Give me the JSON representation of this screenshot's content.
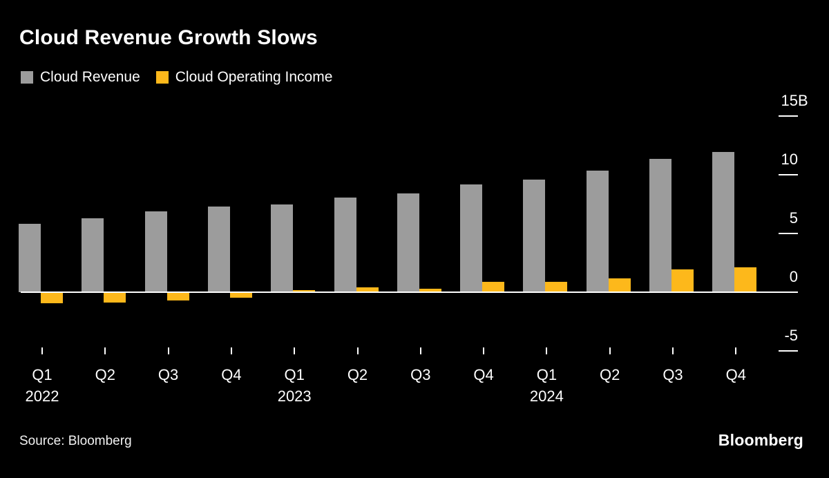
{
  "title": "Cloud Revenue Growth Slows",
  "legend": [
    {
      "label": "Cloud Revenue",
      "color": "#9c9c9c"
    },
    {
      "label": "Cloud Operating Income",
      "color": "#fdb81b"
    }
  ],
  "source": "Source: Bloomberg",
  "brand": "Bloomberg",
  "colors": {
    "background": "#000000",
    "text": "#ffffff",
    "axis": "#ffffff",
    "revenue_bar": "#9c9c9c",
    "income_bar": "#fdb81b"
  },
  "chart_data": {
    "type": "bar",
    "title": "Cloud Revenue Growth Slows",
    "unit": "billions USD",
    "categories": [
      "Q1 2022",
      "Q2 2022",
      "Q3 2022",
      "Q4 2022",
      "Q1 2023",
      "Q2 2023",
      "Q3 2023",
      "Q4 2023",
      "Q1 2024",
      "Q2 2024",
      "Q3 2024",
      "Q4 2024"
    ],
    "x_quarter_labels": [
      "Q1",
      "Q2",
      "Q3",
      "Q4",
      "Q1",
      "Q2",
      "Q3",
      "Q4",
      "Q1",
      "Q2",
      "Q3",
      "Q4"
    ],
    "year_labels": [
      {
        "text": "2022",
        "category_index": 0
      },
      {
        "text": "2023",
        "category_index": 4
      },
      {
        "text": "2024",
        "category_index": 8
      }
    ],
    "series": [
      {
        "name": "Cloud Revenue",
        "color": "#9c9c9c",
        "values": [
          5.82,
          6.28,
          6.87,
          7.32,
          7.45,
          8.03,
          8.41,
          9.19,
          9.57,
          10.35,
          11.35,
          11.96
        ]
      },
      {
        "name": "Cloud Operating Income",
        "color": "#fdb81b",
        "values": [
          -0.93,
          -0.86,
          -0.7,
          -0.48,
          0.19,
          0.4,
          0.27,
          0.86,
          0.9,
          1.17,
          1.95,
          2.09
        ]
      }
    ],
    "y_ticks": [
      {
        "value": 15,
        "label": "15",
        "suffix": "B"
      },
      {
        "value": 10,
        "label": "10",
        "suffix": ""
      },
      {
        "value": 5,
        "label": "5",
        "suffix": ""
      },
      {
        "value": 0,
        "label": "0",
        "suffix": ""
      },
      {
        "value": -5,
        "label": "-5",
        "suffix": ""
      }
    ],
    "ylim": [
      -5,
      15
    ],
    "grid": false,
    "legend_position": "top-left",
    "baseline_value": 0
  }
}
